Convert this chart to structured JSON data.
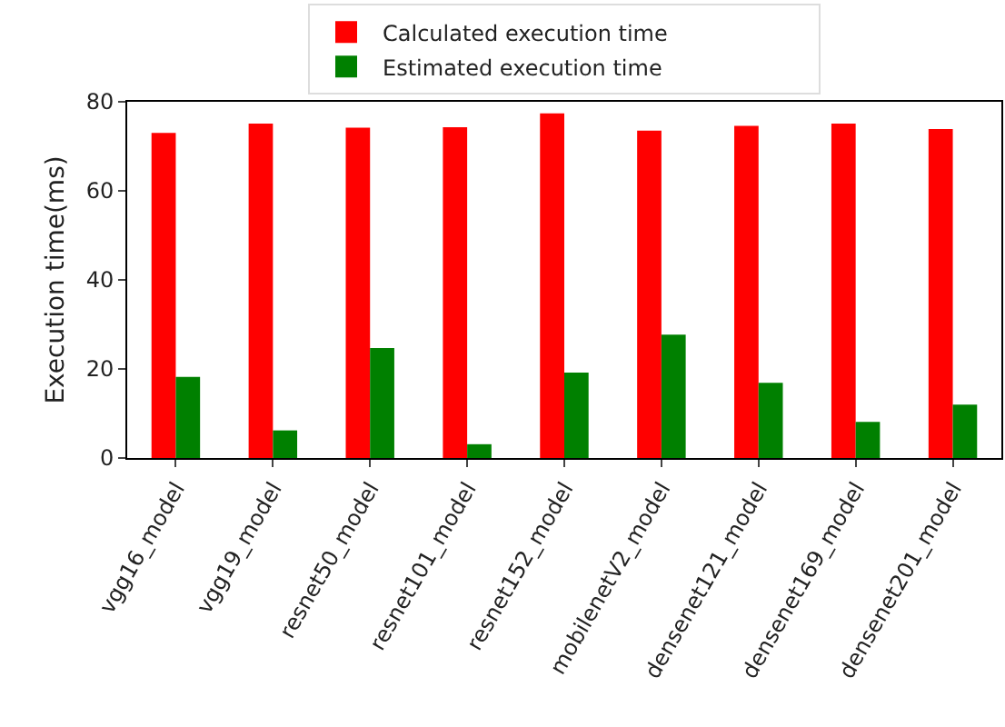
{
  "chart_data": {
    "type": "bar",
    "ylabel": "Execution time(ms)",
    "categories": [
      "vgg16_model",
      "vgg19_model",
      "resnet50_model",
      "resnet101_model",
      "resnet152_model",
      "mobilenetV2_model",
      "densenet121_model",
      "densenet169_model",
      "densenet201_model"
    ],
    "series": [
      {
        "name": "Calculated execution time",
        "color": "#ff0000",
        "values": [
          73.0,
          75.1,
          74.2,
          74.3,
          77.4,
          73.5,
          74.6,
          75.1,
          73.9
        ]
      },
      {
        "name": "Estimated execution time",
        "color": "#008000",
        "values": [
          18.2,
          6.2,
          24.7,
          3.1,
          19.2,
          27.7,
          16.9,
          8.1,
          12.0
        ]
      }
    ],
    "ylim": [
      0,
      80
    ],
    "yticks": [
      0,
      20,
      40,
      60,
      80
    ],
    "grid": false,
    "legend": "top"
  }
}
